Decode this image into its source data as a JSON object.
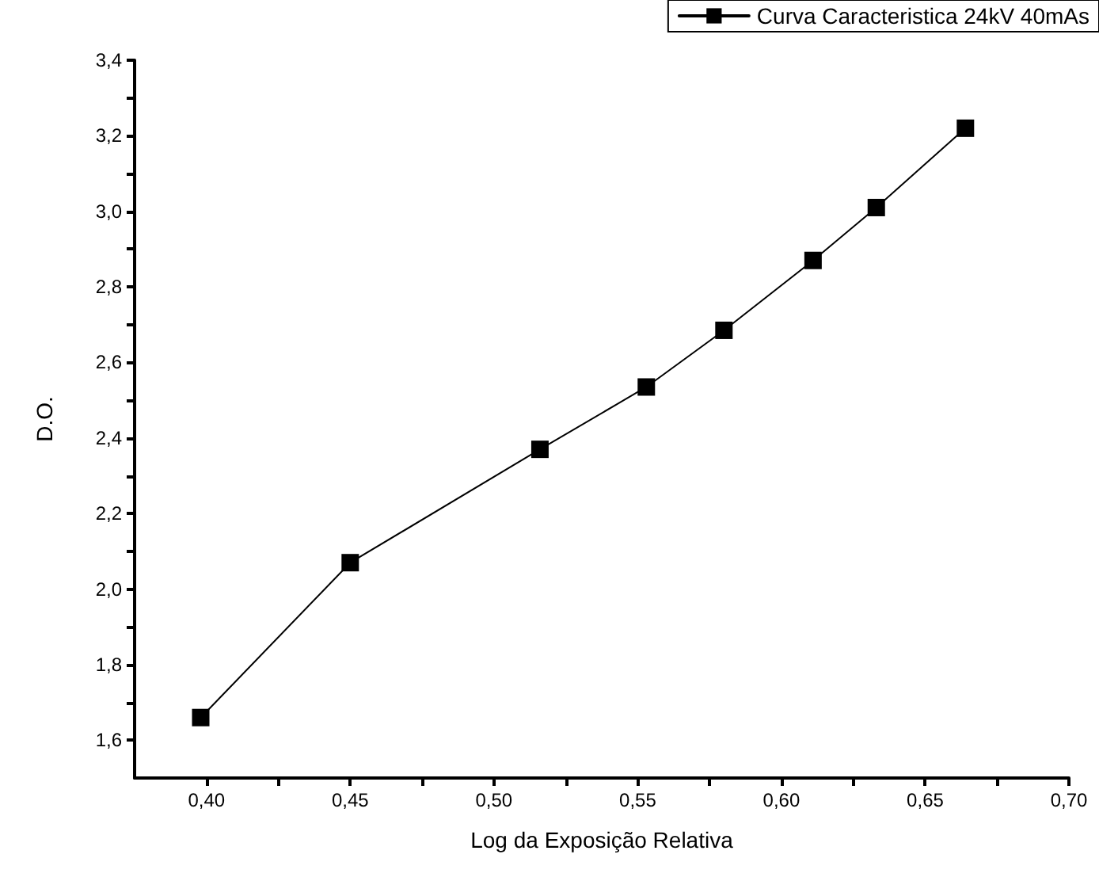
{
  "chart_data": {
    "type": "line",
    "xlabel": "Log da Exposição Relativa",
    "ylabel": "D.O.",
    "x": [
      0.398,
      0.45,
      0.516,
      0.553,
      0.58,
      0.611,
      0.633,
      0.664
    ],
    "series": [
      {
        "name": "Curva Caracteristica 24kV 40mAs",
        "color": "#000000",
        "values": [
          1.66,
          2.07,
          2.37,
          2.535,
          2.685,
          2.87,
          3.01,
          3.22
        ]
      }
    ],
    "xlim": [
      0.375,
      0.7
    ],
    "ylim": [
      1.5,
      3.4
    ],
    "xticks": [
      {
        "value": 0.4,
        "label": "0,40"
      },
      {
        "value": 0.425,
        "label": null
      },
      {
        "value": 0.45,
        "label": "0,45"
      },
      {
        "value": 0.475,
        "label": null
      },
      {
        "value": 0.5,
        "label": "0,50"
      },
      {
        "value": 0.525,
        "label": null
      },
      {
        "value": 0.55,
        "label": "0,55"
      },
      {
        "value": 0.575,
        "label": null
      },
      {
        "value": 0.6,
        "label": "0,60"
      },
      {
        "value": 0.625,
        "label": null
      },
      {
        "value": 0.65,
        "label": "0,65"
      },
      {
        "value": 0.675,
        "label": null
      },
      {
        "value": 0.7,
        "label": "0,70"
      }
    ],
    "yticks": [
      {
        "value": 1.6,
        "label": "1,6"
      },
      {
        "value": 1.7,
        "label": null
      },
      {
        "value": 1.8,
        "label": "1,8"
      },
      {
        "value": 1.9,
        "label": null
      },
      {
        "value": 2.0,
        "label": "2,0"
      },
      {
        "value": 2.1,
        "label": null
      },
      {
        "value": 2.2,
        "label": "2,2"
      },
      {
        "value": 2.3,
        "label": null
      },
      {
        "value": 2.4,
        "label": "2,4"
      },
      {
        "value": 2.5,
        "label": null
      },
      {
        "value": 2.6,
        "label": "2,6"
      },
      {
        "value": 2.7,
        "label": null
      },
      {
        "value": 2.8,
        "label": "2,8"
      },
      {
        "value": 2.9,
        "label": null
      },
      {
        "value": 3.0,
        "label": "3,0"
      },
      {
        "value": 3.1,
        "label": null
      },
      {
        "value": 3.2,
        "label": "3,2"
      },
      {
        "value": 3.3,
        "label": null
      },
      {
        "value": 3.4,
        "label": "3,4"
      }
    ],
    "grid": false,
    "legend": "top right",
    "marker": "square",
    "line_style": "solid"
  }
}
